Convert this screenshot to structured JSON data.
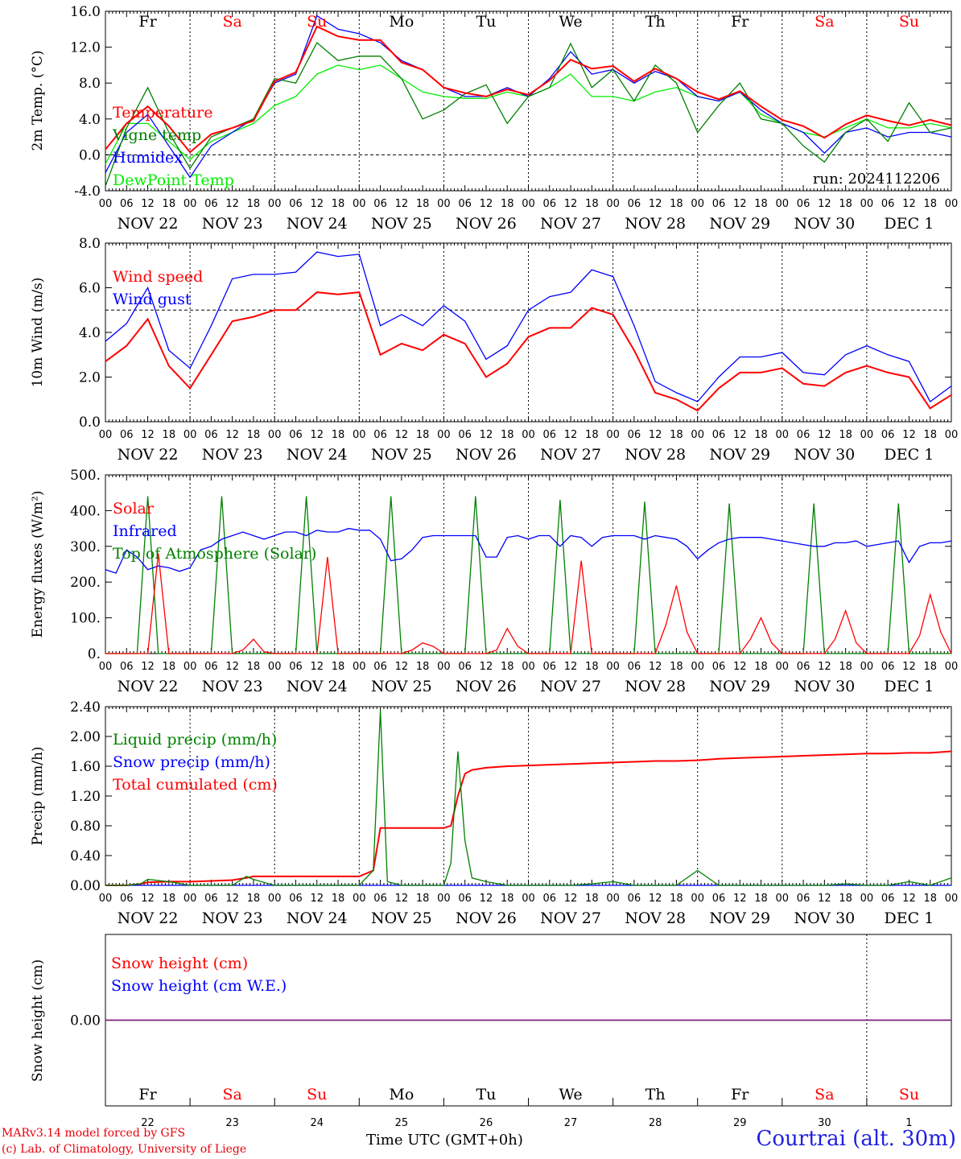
{
  "chart_data": [
    {
      "type": "line",
      "panel": "temperature",
      "ylabel": "2m Temp. (°C)",
      "ylim": [
        -4,
        16
      ],
      "yticks": [
        "-4.0",
        "0.0",
        "4.0",
        "8.0",
        "12.0",
        "16.0"
      ],
      "yticks_values": [
        -4,
        0,
        4,
        8,
        12,
        16
      ],
      "reference_line": 0,
      "annotation": "run: 2024112206",
      "x_hours": [
        0,
        6,
        12,
        18,
        24,
        30,
        36,
        42,
        48,
        54,
        60,
        66,
        72,
        78,
        84,
        90,
        96,
        102,
        108,
        114,
        120,
        126,
        132,
        138,
        144,
        150,
        156,
        162,
        168,
        174,
        180,
        186,
        192,
        198,
        204,
        210,
        216,
        222,
        228,
        234,
        240
      ],
      "series": [
        {
          "name": "Temperature",
          "color": "#ff0000",
          "values": [
            0.6,
            3.5,
            5.4,
            3.2,
            0.3,
            2.3,
            3.0,
            3.8,
            8.2,
            9.2,
            14.3,
            13.2,
            12.8,
            12.8,
            10.3,
            9.5,
            7.5,
            6.9,
            6.5,
            7.3,
            6.7,
            8.3,
            10.6,
            9.6,
            9.9,
            8.2,
            9.6,
            8.5,
            7.0,
            6.2,
            7.1,
            5.4,
            3.9,
            3.2,
            1.9,
            3.4,
            4.4,
            3.8,
            3.3,
            3.9,
            3.3
          ]
        },
        {
          "name": "Vigne temp",
          "color": "#008000",
          "values": [
            -3.5,
            3.0,
            7.5,
            2.5,
            -1.5,
            2.0,
            3.0,
            4.0,
            8.5,
            8.0,
            12.5,
            10.5,
            11.0,
            11.0,
            8.5,
            4.0,
            5.0,
            6.8,
            7.8,
            3.5,
            6.5,
            7.5,
            12.4,
            7.5,
            9.5,
            6.0,
            10.0,
            8.0,
            2.5,
            5.5,
            8.0,
            4.0,
            3.5,
            1.0,
            -0.8,
            2.5,
            4.0,
            1.5,
            5.8,
            2.5,
            3.0
          ]
        },
        {
          "name": "Humidex",
          "color": "#0000ff",
          "values": [
            -2.0,
            2.5,
            4.5,
            1.0,
            -2.5,
            1.0,
            2.5,
            4.0,
            8.0,
            9.0,
            15.5,
            14.0,
            13.5,
            12.5,
            10.5,
            9.5,
            7.5,
            6.5,
            6.5,
            7.5,
            6.5,
            8.5,
            11.5,
            9.0,
            9.5,
            8.0,
            9.3,
            8.5,
            6.5,
            6.0,
            7.0,
            5.0,
            3.5,
            2.5,
            0.2,
            2.5,
            3.0,
            2.0,
            2.5,
            2.5,
            2.0
          ]
        },
        {
          "name": "DewPoint Temp",
          "color": "#00ee00",
          "values": [
            -1.0,
            3.5,
            3.5,
            1.5,
            -0.5,
            1.5,
            2.5,
            3.5,
            5.5,
            6.5,
            9.0,
            10.0,
            9.5,
            10.0,
            8.5,
            7.0,
            6.5,
            6.3,
            6.3,
            7.0,
            6.5,
            7.5,
            9.0,
            6.5,
            6.5,
            6.0,
            7.0,
            7.5,
            6.5,
            6.0,
            7.0,
            4.5,
            3.5,
            2.5,
            2.0,
            3.0,
            4.0,
            3.0,
            3.0,
            3.5,
            3.0
          ]
        }
      ]
    },
    {
      "type": "line",
      "panel": "wind",
      "ylabel": "10m Wind (m/s)",
      "ylim": [
        0,
        8
      ],
      "yticks": [
        "0.0",
        "2.0",
        "4.0",
        "6.0",
        "8.0"
      ],
      "yticks_values": [
        0,
        2,
        4,
        6,
        8
      ],
      "reference_line": 5,
      "x_hours": [
        0,
        6,
        12,
        18,
        24,
        30,
        36,
        42,
        48,
        54,
        60,
        66,
        72,
        78,
        84,
        90,
        96,
        102,
        108,
        114,
        120,
        126,
        132,
        138,
        144,
        150,
        156,
        162,
        168,
        174,
        180,
        186,
        192,
        198,
        204,
        210,
        216,
        222,
        228,
        234,
        240
      ],
      "series": [
        {
          "name": "Wind speed",
          "color": "#ff0000",
          "values": [
            2.7,
            3.4,
            4.6,
            2.5,
            1.5,
            3.0,
            4.5,
            4.7,
            5.0,
            5.0,
            5.8,
            5.7,
            5.8,
            3.0,
            3.5,
            3.2,
            3.9,
            3.5,
            2.0,
            2.6,
            3.8,
            4.2,
            4.2,
            5.1,
            4.8,
            3.2,
            1.3,
            1.0,
            0.5,
            1.5,
            2.2,
            2.2,
            2.4,
            1.7,
            1.6,
            2.2,
            2.5,
            2.2,
            2.0,
            0.6,
            1.2
          ]
        },
        {
          "name": "Wind gust",
          "color": "#0000ff",
          "values": [
            3.6,
            4.4,
            6.0,
            3.2,
            2.4,
            4.3,
            6.4,
            6.6,
            6.6,
            6.7,
            7.6,
            7.4,
            7.5,
            4.3,
            4.8,
            4.3,
            5.2,
            4.5,
            2.8,
            3.4,
            5.0,
            5.6,
            5.8,
            6.8,
            6.5,
            4.3,
            1.8,
            1.3,
            0.9,
            2.0,
            2.9,
            2.9,
            3.1,
            2.2,
            2.1,
            3.0,
            3.4,
            3.0,
            2.7,
            0.9,
            1.6
          ]
        }
      ]
    },
    {
      "type": "line",
      "panel": "energy",
      "ylabel": "Energy fluxes (W/m²)",
      "ylim": [
        0,
        500
      ],
      "yticks": [
        "0.",
        "100.",
        "200.",
        "300.",
        "400.",
        "500."
      ],
      "yticks_values": [
        0,
        100,
        200,
        300,
        400,
        500
      ],
      "x_hours": [
        0,
        3,
        6,
        9,
        12,
        15,
        18,
        21,
        24,
        27,
        30,
        33,
        36,
        39,
        42,
        45,
        48,
        51,
        54,
        57,
        60,
        63,
        66,
        69,
        72,
        75,
        78,
        81,
        84,
        87,
        90,
        93,
        96,
        99,
        102,
        105,
        108,
        111,
        114,
        117,
        120,
        123,
        126,
        129,
        132,
        135,
        138,
        141,
        144,
        147,
        150,
        153,
        156,
        159,
        162,
        165,
        168,
        171,
        174,
        177,
        180,
        183,
        186,
        189,
        192,
        195,
        198,
        201,
        204,
        207,
        210,
        213,
        216,
        219,
        222,
        225,
        228,
        231,
        234,
        237,
        240
      ],
      "series": [
        {
          "name": "Solar",
          "color": "#ff0000",
          "values": [
            0,
            0,
            0,
            0,
            0,
            280,
            0,
            0,
            0,
            0,
            0,
            0,
            0,
            10,
            40,
            5,
            0,
            0,
            0,
            0,
            0,
            270,
            0,
            0,
            0,
            0,
            0,
            0,
            0,
            10,
            30,
            20,
            0,
            0,
            0,
            0,
            0,
            10,
            70,
            20,
            0,
            0,
            0,
            0,
            0,
            260,
            0,
            0,
            0,
            0,
            0,
            0,
            0,
            80,
            190,
            60,
            0,
            0,
            0,
            0,
            0,
            40,
            100,
            30,
            0,
            0,
            0,
            0,
            0,
            40,
            120,
            30,
            0,
            0,
            0,
            0,
            0,
            50,
            165,
            60,
            0
          ]
        },
        {
          "name": "Infrared",
          "color": "#0000ff",
          "values": [
            235,
            225,
            290,
            270,
            235,
            245,
            240,
            230,
            240,
            290,
            300,
            320,
            330,
            340,
            330,
            320,
            330,
            340,
            340,
            330,
            345,
            340,
            340,
            350,
            345,
            345,
            320,
            260,
            265,
            290,
            325,
            330,
            330,
            330,
            330,
            330,
            270,
            270,
            325,
            330,
            320,
            330,
            330,
            300,
            330,
            325,
            300,
            325,
            330,
            330,
            330,
            320,
            330,
            325,
            320,
            300,
            265,
            290,
            310,
            320,
            325,
            325,
            325,
            320,
            315,
            310,
            305,
            300,
            300,
            310,
            310,
            315,
            300,
            305,
            310,
            315,
            255,
            300,
            310,
            310,
            315
          ]
        },
        {
          "name": "Top of Atmosphere (Solar)",
          "color": "#008000",
          "values": [
            0,
            0,
            0,
            0,
            440,
            0,
            0,
            0,
            0,
            0,
            0,
            440,
            0,
            0,
            0,
            0,
            0,
            0,
            0,
            440,
            0,
            0,
            0,
            0,
            0,
            0,
            0,
            440,
            0,
            0,
            0,
            0,
            0,
            0,
            0,
            440,
            0,
            0,
            0,
            0,
            0,
            0,
            0,
            430,
            0,
            0,
            0,
            0,
            0,
            0,
            0,
            425,
            0,
            0,
            0,
            0,
            0,
            0,
            0,
            420,
            0,
            0,
            0,
            0,
            0,
            0,
            0,
            420,
            0,
            0,
            0,
            0,
            0,
            0,
            0,
            420,
            0,
            0,
            0,
            0,
            0
          ]
        }
      ]
    },
    {
      "type": "line",
      "panel": "precip",
      "ylabel": "Precip (mm/h)",
      "ylim": [
        0,
        2.4
      ],
      "yticks": [
        "0.00",
        "0.40",
        "0.80",
        "1.20",
        "1.60",
        "2.00",
        "2.40"
      ],
      "yticks_values": [
        0,
        0.4,
        0.8,
        1.2,
        1.6,
        2.0,
        2.4
      ],
      "x_hours": [
        0,
        6,
        10,
        12,
        18,
        24,
        30,
        36,
        40,
        42,
        48,
        54,
        60,
        66,
        72,
        76,
        78,
        80,
        84,
        90,
        96,
        98,
        100,
        102,
        104,
        108,
        114,
        120,
        126,
        132,
        138,
        144,
        150,
        156,
        162,
        168,
        174,
        180,
        186,
        192,
        198,
        204,
        210,
        216,
        222,
        228,
        234,
        240
      ],
      "series": [
        {
          "name": "Liquid precip (mm/h)",
          "color": "#008000",
          "values": [
            0,
            0,
            0.02,
            0.08,
            0.05,
            0,
            0,
            0,
            0.12,
            0.08,
            0,
            0,
            0,
            0,
            0,
            0.2,
            2.35,
            0.05,
            0,
            0,
            0,
            0.3,
            1.8,
            0.6,
            0.1,
            0.05,
            0,
            0,
            0,
            0,
            0.02,
            0.05,
            0,
            0,
            0,
            0.2,
            0,
            0,
            0,
            0,
            0,
            0,
            0.02,
            0,
            0,
            0.05,
            0,
            0.1
          ]
        },
        {
          "name": "Snow precip (mm/h)",
          "color": "#0000ff",
          "values": [
            0,
            0,
            0,
            0,
            0,
            0,
            0,
            0,
            0,
            0,
            0,
            0,
            0,
            0,
            0,
            0,
            0,
            0,
            0,
            0,
            0,
            0,
            0,
            0,
            0,
            0,
            0,
            0,
            0,
            0,
            0,
            0,
            0,
            0,
            0,
            0,
            0,
            0,
            0,
            0,
            0,
            0,
            0,
            0,
            0,
            0,
            0,
            0
          ]
        },
        {
          "name": "Total cumulated (cm)",
          "color": "#ff0000",
          "values": [
            0,
            0,
            0.02,
            0.04,
            0.05,
            0.05,
            0.06,
            0.07,
            0.1,
            0.12,
            0.12,
            0.12,
            0.12,
            0.12,
            0.12,
            0.2,
            0.77,
            0.77,
            0.77,
            0.77,
            0.77,
            0.8,
            1.2,
            1.5,
            1.55,
            1.58,
            1.6,
            1.61,
            1.62,
            1.63,
            1.64,
            1.65,
            1.66,
            1.67,
            1.67,
            1.68,
            1.7,
            1.71,
            1.72,
            1.73,
            1.74,
            1.75,
            1.76,
            1.77,
            1.77,
            1.78,
            1.78,
            1.8
          ]
        }
      ]
    },
    {
      "type": "line",
      "panel": "snow",
      "ylabel": "Snow height (cm)",
      "ylim": [
        -1,
        1
      ],
      "yticks": [
        "0.00"
      ],
      "yticks_values": [
        0
      ],
      "x_hours": [
        0,
        240
      ],
      "series": [
        {
          "name": "Snow height (cm)",
          "color": "#ff0000",
          "values": [
            0,
            0
          ]
        },
        {
          "name": "Snow height (cm W.E.)",
          "color": "#0000ff",
          "values": [
            0,
            0
          ]
        }
      ]
    }
  ],
  "hour_ticks": [
    "00",
    "06",
    "12",
    "18"
  ],
  "end_hour_tick": "00",
  "dates": [
    "NOV 22",
    "NOV 23",
    "NOV 24",
    "NOV 25",
    "NOV 26",
    "NOV 27",
    "NOV 28",
    "NOV 29",
    "NOV 30",
    "DEC  1"
  ],
  "weekdays": [
    "Fr",
    "Sa",
    "Su",
    "Mo",
    "Tu",
    "We",
    "Th",
    "Fr",
    "Sa",
    "Su"
  ],
  "weekday_colors": [
    "#000000",
    "#ff0000",
    "#ff0000",
    "#000000",
    "#000000",
    "#000000",
    "#000000",
    "#000000",
    "#ff0000",
    "#ff0000"
  ],
  "day_numbers": [
    "22",
    "23",
    "24",
    "25",
    "26",
    "27",
    "28",
    "29",
    "30",
    "1"
  ],
  "xlabel": "Time UTC (GMT+0h)",
  "credit_line1": "MARv3.14 model forced by GFS",
  "credit_line2": "(c) Lab. of Climatology, University of Liege",
  "station": "Courtrai (alt. 30m)"
}
